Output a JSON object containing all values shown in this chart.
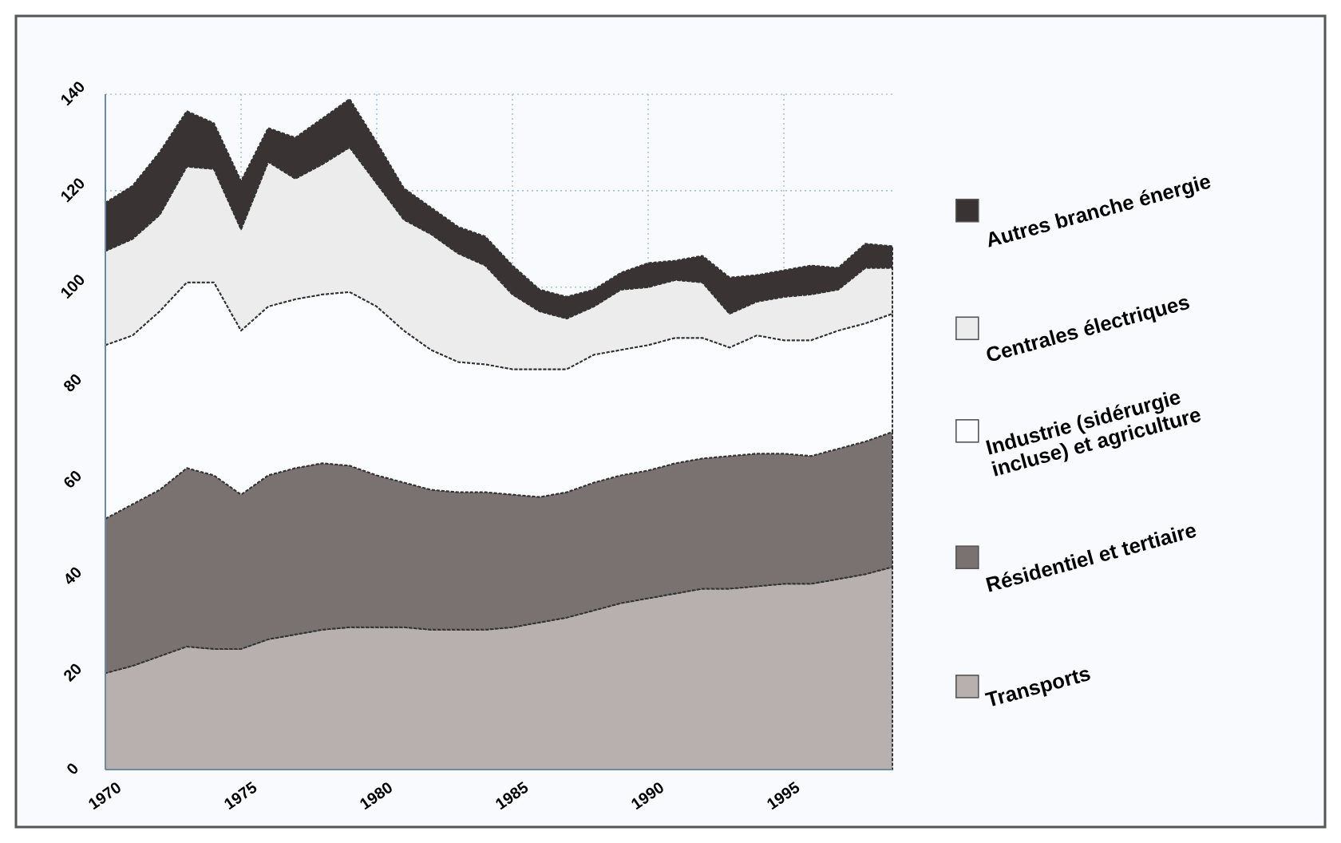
{
  "chart_data": {
    "type": "area",
    "stacked": true,
    "x": [
      1970,
      1971,
      1972,
      1973,
      1974,
      1975,
      1976,
      1977,
      1978,
      1979,
      1980,
      1981,
      1982,
      1983,
      1984,
      1985,
      1986,
      1987,
      1988,
      1989,
      1990,
      1991,
      1992,
      1993,
      1994,
      1995,
      1996,
      1997,
      1998,
      1999
    ],
    "series": [
      {
        "name": "Transports",
        "color": "#b8b0ae",
        "values": [
          20,
          21.5,
          23.5,
          25.5,
          25,
          25,
          27,
          28,
          29,
          29.5,
          29.5,
          29.5,
          29,
          29,
          29,
          29.5,
          30.5,
          31.5,
          33,
          34.5,
          35.5,
          36.5,
          37.5,
          37.5,
          38,
          38.5,
          38.5,
          39.5,
          40.5,
          42
        ]
      },
      {
        "name": "Résidentiel et tertiaire",
        "color": "#7a7270",
        "values": [
          32,
          33.5,
          34.5,
          37,
          36,
          32,
          34,
          34.5,
          34.5,
          33.5,
          31.5,
          30,
          29,
          28.5,
          28.5,
          27.5,
          26,
          26,
          26.5,
          26.5,
          26.5,
          27,
          27,
          27.5,
          27.5,
          27,
          26.5,
          27,
          27.5,
          28
        ]
      },
      {
        "name": "Industrie (sidérurgie incluse) et agriculture",
        "color": "#fbfcff",
        "values": [
          36,
          35,
          37,
          38.5,
          40,
          34,
          35,
          35,
          35,
          36,
          35,
          31.5,
          29,
          27,
          26.5,
          26,
          26.5,
          25.5,
          26.5,
          26,
          26,
          26,
          25,
          22.5,
          24.5,
          23.5,
          24,
          24.5,
          24.5,
          24.5
        ]
      },
      {
        "name": "Centrales électriques",
        "color": "#ececec",
        "values": [
          19.5,
          20,
          20,
          24,
          23.5,
          21,
          30,
          25,
          27,
          30,
          25.5,
          23,
          24,
          22.5,
          20.5,
          15.5,
          12,
          10.5,
          10,
          12.5,
          12,
          12,
          11.5,
          7,
          7,
          9,
          9.5,
          8.5,
          11.5,
          9.5
        ]
      },
      {
        "name": "Autres branche énergie",
        "color": "#3a3333",
        "values": [
          10,
          11,
          13,
          11.5,
          9.5,
          10,
          7,
          8.5,
          9.5,
          10,
          8.5,
          6.5,
          5.5,
          5.5,
          6,
          6,
          4.5,
          4.5,
          3.5,
          3.5,
          5,
          4,
          5.5,
          7.5,
          5.5,
          5.5,
          6,
          4.5,
          5,
          4.5
        ]
      }
    ],
    "xlim": [
      1970,
      1999
    ],
    "xticks": [
      1970,
      1975,
      1980,
      1985,
      1990,
      1995
    ],
    "ylim": [
      0,
      140
    ],
    "yticks": [
      0,
      20,
      40,
      60,
      80,
      100,
      120,
      140
    ],
    "grid": true,
    "legend": "right"
  }
}
